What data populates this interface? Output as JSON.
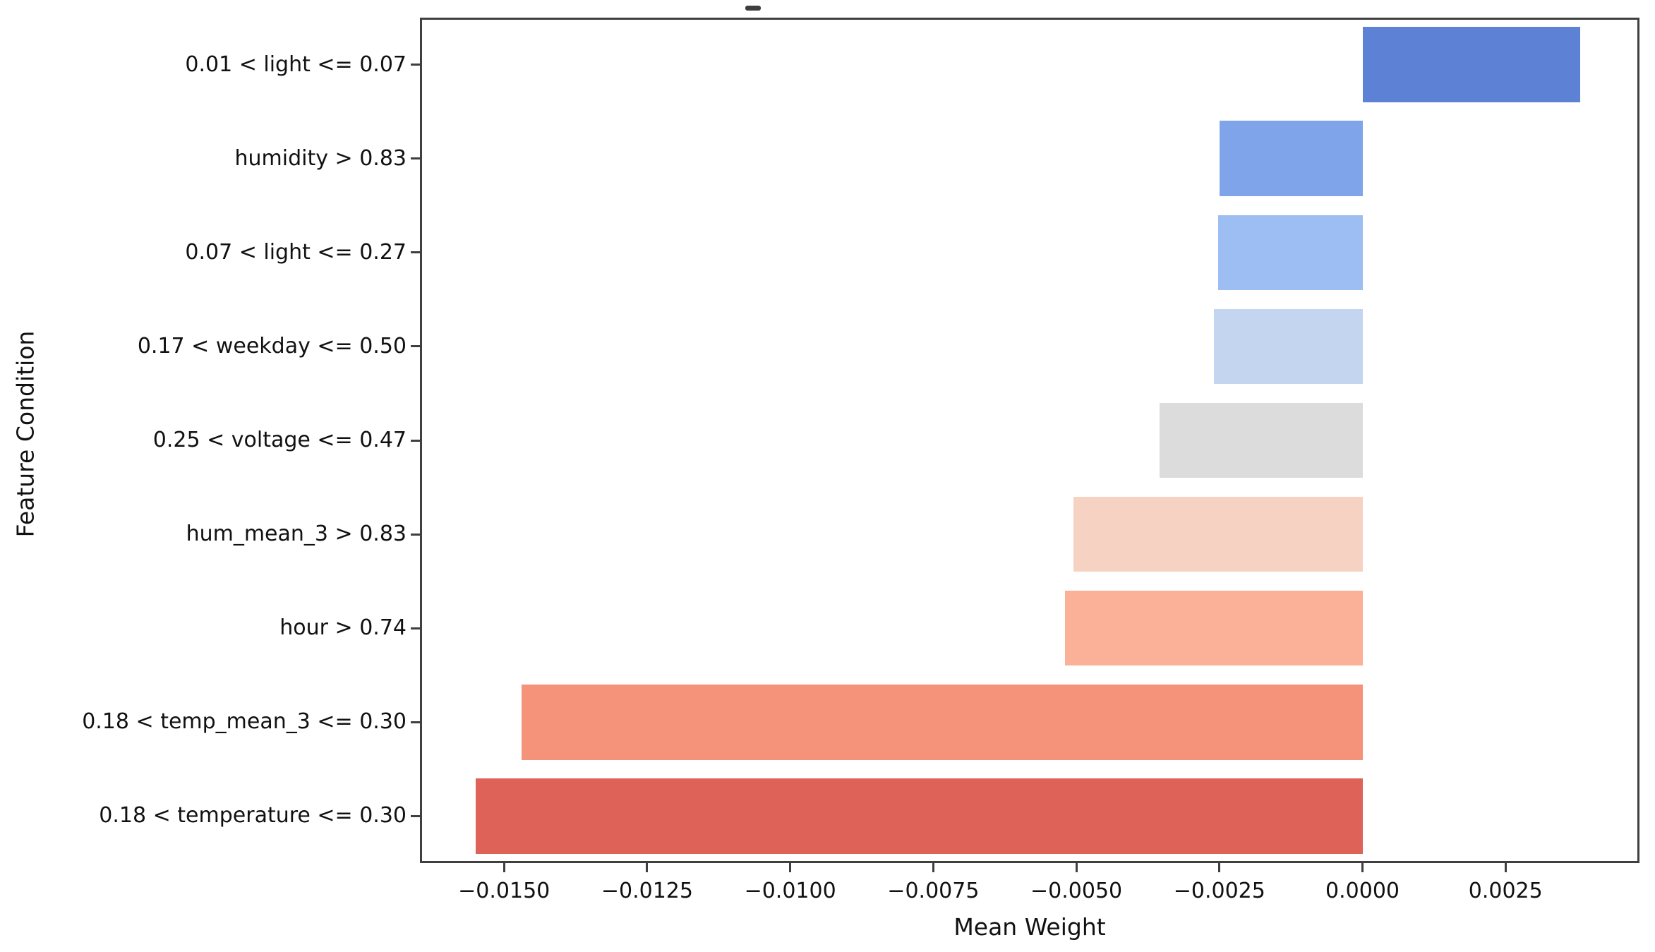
{
  "figure": {
    "background": "#ffffff",
    "cropped_title_mark": true
  },
  "colors": {
    "spine": "#3f3f3f",
    "text": "#111111"
  },
  "chart_data": {
    "type": "bar",
    "orientation": "horizontal",
    "title": "",
    "xlabel": "Mean Weight",
    "ylabel": "Feature Condition",
    "categories": [
      "0.01 < light <= 0.07",
      "humidity > 0.83",
      "0.07 < light <= 0.27",
      "0.17 < weekday <= 0.50",
      "0.25 < voltage <= 0.47",
      "hum_mean_3 > 0.83",
      "hour > 0.74",
      "0.18 < temp_mean_3 <= 0.30",
      "0.18 < temperature <= 0.30"
    ],
    "values": [
      0.0038,
      -0.0025,
      -0.00252,
      -0.0026,
      -0.00355,
      -0.00505,
      -0.0052,
      -0.0147,
      -0.0155
    ],
    "bar_colors": [
      "#5d82d5",
      "#80a4ea",
      "#9dbef2",
      "#c3d5ef",
      "#dcdcdc",
      "#f6d2c3",
      "#fbb197",
      "#f5937a",
      "#de6257"
    ],
    "x_ticks": [
      -0.015,
      -0.0125,
      -0.01,
      -0.0075,
      -0.005,
      -0.0025,
      0,
      0.0025
    ],
    "x_tick_labels": [
      "−0.0150",
      "−0.0125",
      "−0.0100",
      "−0.0075",
      "−0.0050",
      "−0.0025",
      "0.0000",
      "0.0025"
    ],
    "xlim": [
      -0.01647,
      0.00484
    ],
    "bar_fraction": 0.8,
    "grid": false,
    "legend_position": "none"
  }
}
